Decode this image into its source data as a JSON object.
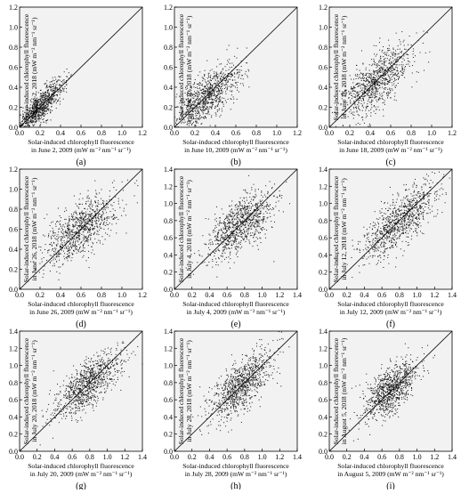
{
  "figure": {
    "colors": {
      "panel_bg": "#f2f2f2",
      "point": "#1a1a1a",
      "axis": "#000000",
      "diagonal": "#000000"
    },
    "panels": [
      {
        "panel_label": "(a)",
        "xlabel": "Solar-induced chlorophyll fluorescence\nin June 2, 2009 (mW m⁻² nm⁻¹ sr⁻¹)",
        "ylabel": "Solar-induced chlorophyll fluorescence\nin June 2, 2018 (mW m⁻² nm⁻¹ sr⁻¹)",
        "xlim": [
          0,
          1.2
        ],
        "ylim": [
          0,
          1.2
        ],
        "xticks": [
          "0.0",
          "0.2",
          "0.4",
          "0.6",
          "0.8",
          "1.0",
          "1.2"
        ],
        "yticks": [
          "0.0",
          "0.2",
          "0.4",
          "0.6",
          "0.8",
          "1.0",
          "1.2"
        ]
      },
      {
        "panel_label": "(b)",
        "xlabel": "Solar-induced chlorophyll fluorescence\nin June 10, 2009 (mW m⁻² nm⁻¹ sr⁻¹)",
        "ylabel": "Solar-induced chlorophyll fluorescence\nin June 10, 2018 (mW m⁻² nm⁻¹ sr⁻¹)",
        "xlim": [
          0,
          1.2
        ],
        "ylim": [
          0,
          1.2
        ],
        "xticks": [
          "0.0",
          "0.2",
          "0.4",
          "0.6",
          "0.8",
          "1.0",
          "1.2"
        ],
        "yticks": [
          "0.0",
          "0.2",
          "0.4",
          "0.6",
          "0.8",
          "1.0",
          "1.2"
        ]
      },
      {
        "panel_label": "(c)",
        "xlabel": "Solar-induced chlorophyll fluorescence\nin June 18, 2009 (mW m⁻² nm⁻¹ sr⁻¹)",
        "ylabel": "Solar-induced chlorophyll fluorescence\nin June 18, 2018 (mW m⁻² nm⁻¹ sr⁻¹)",
        "xlim": [
          0,
          1.2
        ],
        "ylim": [
          0,
          1.2
        ],
        "xticks": [
          "0.0",
          "0.2",
          "0.4",
          "0.6",
          "0.8",
          "1.0",
          "1.2"
        ],
        "yticks": [
          "0.0",
          "0.2",
          "0.4",
          "0.6",
          "0.8",
          "1.0",
          "1.2"
        ]
      },
      {
        "panel_label": "(d)",
        "xlabel": "Solar-induced chlorophyll fluorescence\nin June 26, 2009 (mW m⁻² nm⁻¹ sr⁻¹)",
        "ylabel": "Solar-induced chlorophyll fluorescence\nin June 26, 2018 (mW m⁻² nm⁻¹ sr⁻¹)",
        "xlim": [
          0,
          1.2
        ],
        "ylim": [
          0,
          1.2
        ],
        "xticks": [
          "0.0",
          "0.2",
          "0.4",
          "0.6",
          "0.8",
          "1.0",
          "1.2"
        ],
        "yticks": [
          "0.0",
          "0.2",
          "0.4",
          "0.6",
          "0.8",
          "1.0",
          "1.2"
        ]
      },
      {
        "panel_label": "(e)",
        "xlabel": "Solar-induced chlorophyll fluorescence\nin July 4, 2009 (mW m⁻² nm⁻¹ sr⁻¹)",
        "ylabel": "Solar-induced chlorophyll fluorescence\nin July 4, 2018 (mW m⁻² nm⁻¹ sr⁻¹)",
        "xlim": [
          0,
          1.4
        ],
        "ylim": [
          0,
          1.4
        ],
        "xticks": [
          "0.0",
          "0.2",
          "0.4",
          "0.6",
          "0.8",
          "1.0",
          "1.2",
          "1.4"
        ],
        "yticks": [
          "0.0",
          "0.2",
          "0.4",
          "0.6",
          "0.8",
          "1.0",
          "1.2",
          "1.4"
        ]
      },
      {
        "panel_label": "(f)",
        "xlabel": "Solar-induced chlorophyll fluorescence\nin July 12, 2009 (mW m⁻² nm⁻¹ sr⁻¹)",
        "ylabel": "Solar-induced chlorophyll fluorescence\nin July 12, 2018 (mW m⁻² nm⁻¹ sr⁻¹)",
        "xlim": [
          0,
          1.4
        ],
        "ylim": [
          0,
          1.4
        ],
        "xticks": [
          "0.0",
          "0.2",
          "0.4",
          "0.6",
          "0.8",
          "1.0",
          "1.2",
          "1.4"
        ],
        "yticks": [
          "0.0",
          "0.2",
          "0.4",
          "0.6",
          "0.8",
          "1.0",
          "1.2",
          "1.4"
        ]
      },
      {
        "panel_label": "(g)",
        "xlabel": "Solar-induced chlorophyll fluorescence\nin July 20, 2009 (mW m⁻² nm⁻¹ sr⁻¹)",
        "ylabel": "Solar-induced chlorophyll fluorescence\nin July 20, 2018 (mW m⁻² nm⁻¹ sr⁻¹)",
        "xlim": [
          0,
          1.4
        ],
        "ylim": [
          0,
          1.4
        ],
        "xticks": [
          "0.0",
          "0.2",
          "0.4",
          "0.6",
          "0.8",
          "1.0",
          "1.2",
          "1.4"
        ],
        "yticks": [
          "0.0",
          "0.2",
          "0.4",
          "0.6",
          "0.8",
          "1.0",
          "1.2",
          "1.4"
        ]
      },
      {
        "panel_label": "(h)",
        "xlabel": "Solar-induced chlorophyll fluorescence\nin July 28, 2009 (mW m⁻² nm⁻¹ sr⁻¹)",
        "ylabel": "Solar-induced chlorophyll fluorescence\nin July 28, 2018 (mW m⁻² nm⁻¹ sr⁻¹)",
        "xlim": [
          0,
          1.4
        ],
        "ylim": [
          0,
          1.4
        ],
        "xticks": [
          "0.0",
          "0.2",
          "0.4",
          "0.6",
          "0.8",
          "1.0",
          "1.2",
          "1.4"
        ],
        "yticks": [
          "0.0",
          "0.2",
          "0.4",
          "0.6",
          "0.8",
          "1.0",
          "1.2",
          "1.4"
        ]
      },
      {
        "panel_label": "(i)",
        "xlabel": "Solar-induced chlorophyll fluorescence\nin August 5, 2009 (mW m⁻² nm⁻¹ sr⁻¹)",
        "ylabel": "Solar-induced chlorophyll fluorescence\nin August 5, 2018 (mW m⁻² nm⁻¹ sr⁻¹)",
        "xlim": [
          0,
          1.4
        ],
        "ylim": [
          0,
          1.4
        ],
        "xticks": [
          "0.0",
          "0.2",
          "0.4",
          "0.6",
          "0.8",
          "1.0",
          "1.2",
          "1.4"
        ],
        "yticks": [
          "0.0",
          "0.2",
          "0.4",
          "0.6",
          "0.8",
          "1.0",
          "1.2",
          "1.4"
        ]
      }
    ]
  },
  "chart_data": [
    {
      "type": "scatter",
      "xlabel": "Solar-induced chlorophyll fluorescence in June 2, 2009 (mW m⁻² nm⁻¹ sr⁻¹)",
      "ylabel": "Solar-induced chlorophyll fluorescence in June 2, 2018 (mW m⁻² nm⁻¹ sr⁻¹)",
      "xlim": [
        0,
        1.2
      ],
      "ylim": [
        0,
        1.2
      ],
      "reference_line": "1:1",
      "cluster": {
        "x_mean": 0.2,
        "x_sd": 0.12,
        "y_mean": 0.2,
        "y_sd": 0.14,
        "correlation": 0.85
      }
    },
    {
      "type": "scatter",
      "xlabel": "Solar-induced chlorophyll fluorescence in June 10, 2009 (mW m⁻² nm⁻¹ sr⁻¹)",
      "ylabel": "Solar-induced chlorophyll fluorescence in June 10, 2018 (mW m⁻² nm⁻¹ sr⁻¹)",
      "xlim": [
        0,
        1.2
      ],
      "ylim": [
        0,
        1.2
      ],
      "reference_line": "1:1",
      "cluster": {
        "x_mean": 0.32,
        "x_sd": 0.16,
        "y_mean": 0.3,
        "y_sd": 0.16,
        "correlation": 0.7
      }
    },
    {
      "type": "scatter",
      "xlabel": "Solar-induced chlorophyll fluorescence in June 18, 2009 (mW m⁻² nm⁻¹ sr⁻¹)",
      "ylabel": "Solar-induced chlorophyll fluorescence in June 18, 2018 (mW m⁻² nm⁻¹ sr⁻¹)",
      "xlim": [
        0,
        1.2
      ],
      "ylim": [
        0,
        1.2
      ],
      "reference_line": "1:1",
      "cluster": {
        "x_mean": 0.45,
        "x_sd": 0.18,
        "y_mean": 0.45,
        "y_sd": 0.18,
        "correlation": 0.65
      }
    },
    {
      "type": "scatter",
      "xlabel": "Solar-induced chlorophyll fluorescence in June 26, 2009 (mW m⁻² nm⁻¹ sr⁻¹)",
      "ylabel": "Solar-induced chlorophyll fluorescence in June 26, 2018 (mW m⁻² nm⁻¹ sr⁻¹)",
      "xlim": [
        0,
        1.2
      ],
      "ylim": [
        0,
        1.2
      ],
      "reference_line": "1:1",
      "cluster": {
        "x_mean": 0.6,
        "x_sd": 0.18,
        "y_mean": 0.6,
        "y_sd": 0.18,
        "correlation": 0.65
      }
    },
    {
      "type": "scatter",
      "xlabel": "Solar-induced chlorophyll fluorescence in July 4, 2009 (mW m⁻² nm⁻¹ sr⁻¹)",
      "ylabel": "Solar-induced chlorophyll fluorescence in July 4, 2018 (mW m⁻² nm⁻¹ sr⁻¹)",
      "xlim": [
        0,
        1.4
      ],
      "ylim": [
        0,
        1.4
      ],
      "reference_line": "1:1",
      "cluster": {
        "x_mean": 0.75,
        "x_sd": 0.2,
        "y_mean": 0.75,
        "y_sd": 0.2,
        "correlation": 0.65
      }
    },
    {
      "type": "scatter",
      "xlabel": "Solar-induced chlorophyll fluorescence in July 12, 2009 (mW m⁻² nm⁻¹ sr⁻¹)",
      "ylabel": "Solar-induced chlorophyll fluorescence in July 12, 2018 (mW m⁻² nm⁻¹ sr⁻¹)",
      "xlim": [
        0,
        1.4
      ],
      "ylim": [
        0,
        1.4
      ],
      "reference_line": "1:1",
      "cluster": {
        "x_mean": 0.8,
        "x_sd": 0.22,
        "y_mean": 0.8,
        "y_sd": 0.22,
        "correlation": 0.75
      }
    },
    {
      "type": "scatter",
      "xlabel": "Solar-induced chlorophyll fluorescence in July 20, 2009 (mW m⁻² nm⁻¹ sr⁻¹)",
      "ylabel": "Solar-induced chlorophyll fluorescence in July 20, 2018 (mW m⁻² nm⁻¹ sr⁻¹)",
      "xlim": [
        0,
        1.4
      ],
      "ylim": [
        0,
        1.4
      ],
      "reference_line": "1:1",
      "cluster": {
        "x_mean": 0.78,
        "x_sd": 0.2,
        "y_mean": 0.78,
        "y_sd": 0.2,
        "correlation": 0.75
      }
    },
    {
      "type": "scatter",
      "xlabel": "Solar-induced chlorophyll fluorescence in July 28, 2009 (mW m⁻² nm⁻¹ sr⁻¹)",
      "ylabel": "Solar-induced chlorophyll fluorescence in July 28, 2018 (mW m⁻² nm⁻¹ sr⁻¹)",
      "xlim": [
        0,
        1.4
      ],
      "ylim": [
        0,
        1.4
      ],
      "reference_line": "1:1",
      "cluster": {
        "x_mean": 0.75,
        "x_sd": 0.18,
        "y_mean": 0.75,
        "y_sd": 0.2,
        "correlation": 0.7
      }
    },
    {
      "type": "scatter",
      "xlabel": "Solar-induced chlorophyll fluorescence in August 5, 2009 (mW m⁻² nm⁻¹ sr⁻¹)",
      "ylabel": "Solar-induced chlorophyll fluorescence in August 5, 2018 (mW m⁻² nm⁻¹ sr⁻¹)",
      "xlim": [
        0,
        1.4
      ],
      "ylim": [
        0,
        1.4
      ],
      "reference_line": "1:1",
      "cluster": {
        "x_mean": 0.7,
        "x_sd": 0.15,
        "y_mean": 0.72,
        "y_sd": 0.17,
        "correlation": 0.65
      }
    }
  ]
}
